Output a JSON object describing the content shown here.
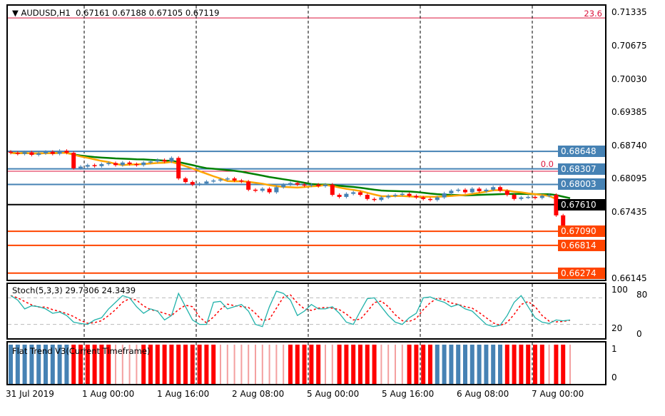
{
  "header": {
    "symbol": "AUDUSD,H1",
    "open": "0.67161",
    "high": "0.67188",
    "low": "0.67105",
    "close": "0.67119"
  },
  "price_axis": [
    "0.71335",
    "0.70675",
    "0.70030",
    "0.69385",
    "0.68740",
    "0.68095",
    "0.67435",
    "0.66145"
  ],
  "levels": [
    {
      "label": "0.68648",
      "value": 0.68648,
      "color": "#4682b4"
    },
    {
      "label": "0.68307",
      "value": 0.68307,
      "color": "#4682b4"
    },
    {
      "label": "0.68003",
      "value": 0.68003,
      "color": "#4682b4"
    },
    {
      "label": "0.67610",
      "value": 0.6761,
      "color": "#000000"
    },
    {
      "label": "0.67090",
      "value": 0.6709,
      "color": "#ff4500"
    },
    {
      "label": "0.66814",
      "value": 0.66814,
      "color": "#ff4500"
    },
    {
      "label": "0.66274",
      "value": 0.66274,
      "color": "#ff4500"
    }
  ],
  "fibo": [
    {
      "label": "23.6",
      "value": 0.7125
    },
    {
      "label": "0.0",
      "value": 0.6826
    }
  ],
  "stoch": {
    "title": "Stoch(5,3,3) 29.7306 24.3439",
    "axis": [
      "100",
      "80",
      "20",
      "0"
    ],
    "k": [
      85,
      75,
      55,
      62,
      60,
      55,
      45,
      48,
      40,
      25,
      22,
      20,
      30,
      35,
      55,
      70,
      85,
      80,
      60,
      45,
      55,
      50,
      30,
      40,
      90,
      60,
      30,
      20,
      20,
      70,
      72,
      55,
      60,
      65,
      50,
      20,
      15,
      60,
      95,
      90,
      75,
      40,
      50,
      65,
      55,
      55,
      60,
      45,
      25,
      20,
      50,
      78,
      80,
      60,
      40,
      25,
      20,
      35,
      45,
      80,
      82,
      75,
      70,
      60,
      65,
      55,
      50,
      35,
      20,
      15,
      18,
      40,
      70,
      85,
      60,
      35,
      25,
      22,
      30,
      28,
      30
    ]
  },
  "flat": {
    "title": "Flat Trend V3(Current Timeframe)",
    "axis": [
      "1",
      "0"
    ],
    "states": "bbbbbbbbbrrrrrrllllrrrrrrrrrrrllllllllllrrrrrllrrrrrrllllrrrrbbbbbbbbbbrrrrrrlrrl"
  },
  "time_axis": [
    "31 Jul 2019",
    "1 Aug 00:00",
    "1 Aug 16:00",
    "2 Aug 08:00",
    "5 Aug 00:00",
    "5 Aug 16:00",
    "6 Aug 08:00",
    "7 Aug 00:00"
  ],
  "colors": {
    "bull": "#4682b4",
    "bear": "#ff0000",
    "ma_fast": "#ffa500",
    "ma_slow": "#008000",
    "stoch_k": "#20b2aa",
    "stoch_d": "#ff0000"
  },
  "chart_data": {
    "type": "candlestick",
    "symbol": "AUDUSD",
    "timeframe": "H1",
    "ylim": [
      0.66145,
      0.71335
    ],
    "closes": [
      0.6862,
      0.686,
      0.6863,
      0.6858,
      0.6861,
      0.6864,
      0.686,
      0.6866,
      0.6862,
      0.6832,
      0.6835,
      0.6838,
      0.6836,
      0.684,
      0.6842,
      0.6838,
      0.6843,
      0.684,
      0.6838,
      0.6843,
      0.6845,
      0.6848,
      0.6845,
      0.6852,
      0.6812,
      0.6805,
      0.68,
      0.6802,
      0.6806,
      0.6808,
      0.681,
      0.6812,
      0.6808,
      0.6806,
      0.679,
      0.6788,
      0.6792,
      0.6785,
      0.6795,
      0.68,
      0.6803,
      0.68,
      0.6798,
      0.68,
      0.6797,
      0.68,
      0.678,
      0.6776,
      0.6782,
      0.6785,
      0.678,
      0.6772,
      0.677,
      0.6775,
      0.6778,
      0.678,
      0.6782,
      0.6778,
      0.6775,
      0.6772,
      0.677,
      0.6775,
      0.6783,
      0.6788,
      0.679,
      0.6785,
      0.6792,
      0.6787,
      0.679,
      0.6795,
      0.6788,
      0.678,
      0.6772,
      0.6775,
      0.6776,
      0.6774,
      0.6778,
      0.678,
      0.674,
      0.671,
      0.6712
    ]
  }
}
